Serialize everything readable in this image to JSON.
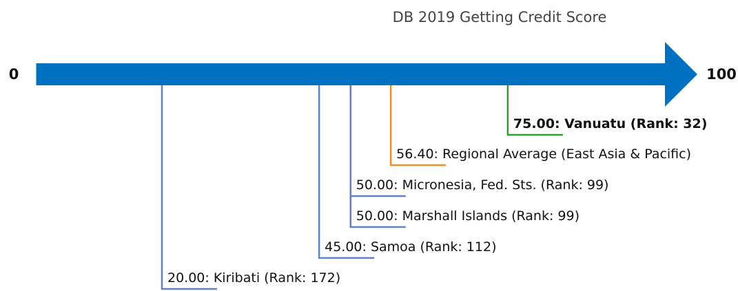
{
  "chart_data": {
    "type": "number-line",
    "title": "DB 2019 Getting Credit Score",
    "xlim": [
      0,
      100
    ],
    "xticks": [
      0,
      100
    ],
    "axis_color": "#0070c0",
    "values": [
      75,
      56.4,
      50,
      50,
      45,
      20
    ],
    "value_labels": [
      "75.00: Vanuatu (Rank: 32)",
      "56.40: Regional Average (East Asia & Pacific)",
      "50.00: Micronesia, Fed. Sts. (Rank: 99)",
      "50.00: Marshall Islands (Rank: 99)",
      "45.00: Samoa (Rank: 112)",
      "20.00: Kiribati (Rank: 172)"
    ],
    "colors": [
      "#2ca02c",
      "#f28e2b",
      "#5b84c4",
      "#5b84c4",
      "#5b84c4",
      "#5b84c4"
    ],
    "bold": [
      true,
      false,
      false,
      false,
      false,
      false
    ]
  }
}
